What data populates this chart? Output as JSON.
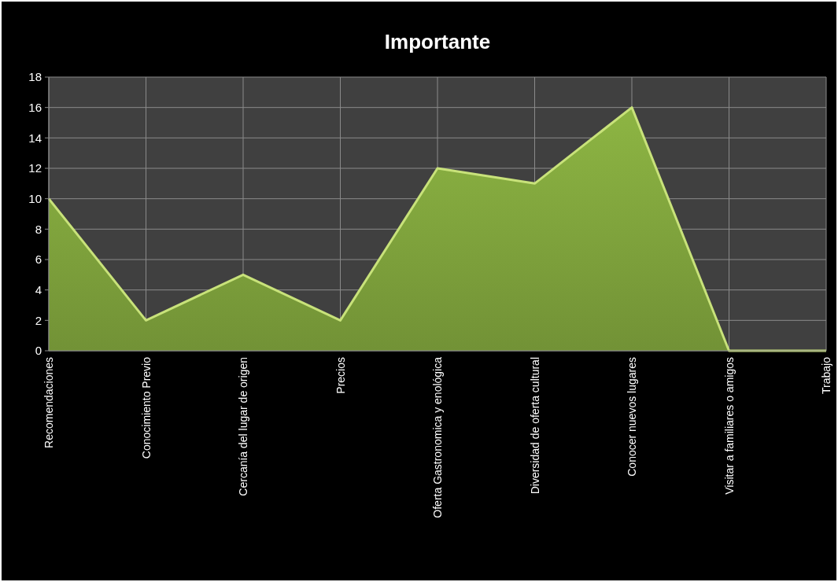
{
  "chart_data": {
    "type": "area",
    "title": "Importante",
    "categories": [
      "Recomendaciones",
      "Conocimiento Previo",
      "Cercanía del lugar de origen",
      "Precios",
      "Oferta Gastronomica  y enológica",
      "Diversidad de oferta cultural",
      "Conocer nuevos lugares",
      "Visitar a familiares o amigos",
      "Trabajo"
    ],
    "values": [
      10,
      2,
      5,
      2,
      12,
      11,
      16,
      0,
      0
    ],
    "color": "#8db543",
    "ylim": [
      0,
      18
    ],
    "yticks": [
      0,
      2,
      4,
      6,
      8,
      10,
      12,
      14,
      16,
      18
    ],
    "grid": true
  }
}
